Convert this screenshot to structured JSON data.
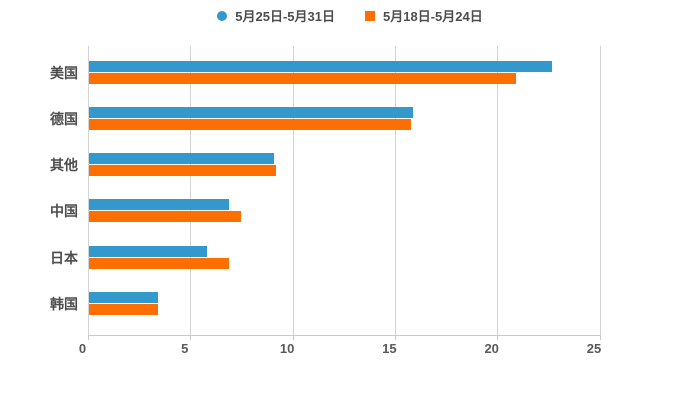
{
  "chart_data": {
    "type": "bar",
    "orientation": "horizontal",
    "title": "",
    "xlabel": "",
    "ylabel": "",
    "categories": [
      "美国",
      "德国",
      "其他",
      "中国",
      "日本",
      "韩国"
    ],
    "series": [
      {
        "name": "5月25日-5月31日",
        "color": "#3398cc",
        "marker": "circle",
        "values": [
          22.7,
          15.9,
          9.1,
          6.9,
          5.8,
          3.4
        ]
      },
      {
        "name": "5月18日-5月24日",
        "color": "#ff6e00",
        "marker": "square",
        "values": [
          20.9,
          15.8,
          9.2,
          7.5,
          6.9,
          3.4
        ]
      }
    ],
    "x_ticks": [
      0,
      5,
      10,
      15,
      20,
      25
    ],
    "xlim": [
      0,
      25
    ],
    "grid": true,
    "legend_position": "top",
    "grid_color": "#d4d4d4",
    "axis_color": "#c9c9c9",
    "tick_text_color": "#595959",
    "category_text_color": "#4d4d4d"
  }
}
